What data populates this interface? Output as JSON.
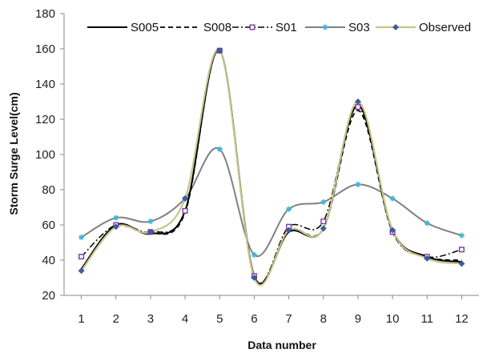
{
  "chart_data": {
    "type": "line",
    "title": "",
    "xlabel": "Data number",
    "ylabel": "Storm Surge Level(cm)",
    "x": [
      1,
      2,
      3,
      4,
      5,
      6,
      7,
      8,
      9,
      10,
      11,
      12
    ],
    "xticks": [
      "1",
      "2",
      "3",
      "4",
      "5",
      "6",
      "7",
      "8",
      "9",
      "10",
      "11",
      "12"
    ],
    "ylim": [
      20,
      180
    ],
    "yticks": [
      "20",
      "40",
      "60",
      "80",
      "100",
      "120",
      "140",
      "160",
      "180"
    ],
    "grid": false,
    "legend_position": "top",
    "series": [
      {
        "name": "S005",
        "values": [
          35,
          60,
          55,
          68,
          159,
          31,
          56,
          58,
          128,
          57,
          42,
          39
        ],
        "color": "#000000",
        "style": "solid",
        "marker": "none"
      },
      {
        "name": "S008",
        "values": [
          35,
          59,
          55,
          67,
          159,
          31,
          57,
          58,
          125,
          56,
          42,
          40
        ],
        "color": "#000000",
        "style": "dashed",
        "marker": "none"
      },
      {
        "name": "S01",
        "values": [
          42,
          60,
          56,
          68,
          159,
          31,
          59,
          62,
          127,
          56,
          42,
          46
        ],
        "color": "#000000",
        "style": "dashdot",
        "marker": "square"
      },
      {
        "name": "S03",
        "values": [
          53,
          64,
          62,
          75,
          103,
          43,
          69,
          73,
          83,
          75,
          61,
          54
        ],
        "color": "#808080",
        "style": "solid",
        "marker": "star"
      },
      {
        "name": "Observed",
        "values": [
          34,
          59,
          56,
          75,
          159,
          30,
          57,
          58,
          130,
          57,
          41,
          38
        ],
        "color": "#c9c48a",
        "style": "solid",
        "marker": "diamond"
      }
    ]
  }
}
